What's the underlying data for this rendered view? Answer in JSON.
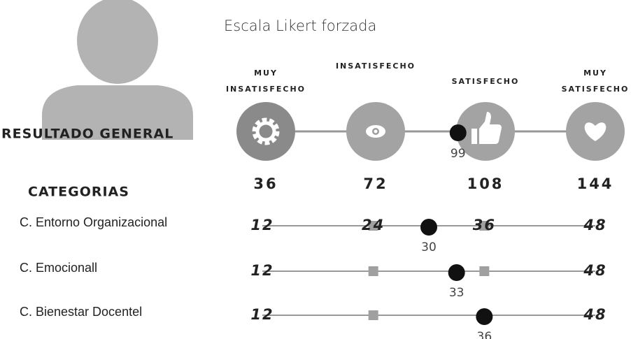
{
  "title": "Escala Likert forzada",
  "scale": [
    {
      "label": [
        "MUY",
        "INSATISFECHO"
      ],
      "value": 36
    },
    {
      "label": [
        "INSATISFECHO"
      ],
      "value": 72
    },
    {
      "label": [
        "SATISFECHO"
      ],
      "value": 108
    },
    {
      "label": [
        "MUY",
        "SATISFECHO"
      ],
      "value": 144
    }
  ],
  "general": {
    "label": "RESULTADO GENERAL",
    "value": 99
  },
  "categories_title": "CATEGORIAS",
  "categories": [
    {
      "label": "C. Entorno Organizacional",
      "ticks": [
        12,
        24,
        36,
        48
      ],
      "value": 30
    },
    {
      "label": "C. Emocionall",
      "ticks": [
        12,
        48
      ],
      "value": 33
    },
    {
      "label": "C. Bienestar Docentel",
      "ticks": [
        12,
        48
      ],
      "value": 36
    }
  ]
}
